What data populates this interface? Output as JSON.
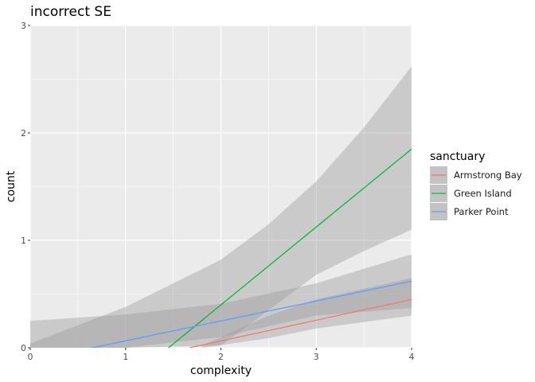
{
  "chart_data": {
    "type": "line",
    "title": "incorrect SE",
    "xlabel": "complexity",
    "ylabel": "count",
    "xlim": [
      0,
      4
    ],
    "ylim": [
      0,
      3
    ],
    "x_ticks": [
      0,
      1,
      2,
      3,
      4
    ],
    "y_ticks": [
      0,
      1,
      2,
      3
    ],
    "x_tick_labels": [
      "0",
      "1",
      "2",
      "3",
      "4"
    ],
    "y_tick_labels": [
      "0",
      "1",
      "2",
      "3"
    ],
    "grid": true,
    "legend": {
      "title": "sanctuary",
      "position": "right"
    },
    "series": [
      {
        "name": "Armstrong Bay",
        "color": "#F8766D",
        "x": [
          1.67,
          4
        ],
        "y": [
          0,
          0.45
        ],
        "ribbon": {
          "x": [
            1.8,
            2.5,
            3,
            3.5,
            4
          ],
          "lower": [
            0,
            0.09,
            0.18,
            0.24,
            0.3
          ],
          "upper": [
            0.02,
            0.3,
            0.45,
            0.55,
            0.65
          ]
        }
      },
      {
        "name": "Green Island",
        "color": "#00BA38",
        "x": [
          1.45,
          4
        ],
        "y": [
          0,
          1.85
        ],
        "ribbon": {
          "x": [
            0,
            1,
            2,
            2.5,
            3,
            3.5,
            4
          ],
          "lower": [
            0,
            0,
            0.02,
            0.35,
            0.68,
            0.9,
            1.1
          ],
          "upper": [
            0.04,
            0.38,
            0.82,
            1.15,
            1.55,
            2.05,
            2.62
          ]
        }
      },
      {
        "name": "Parker Point",
        "color": "#619CFF",
        "x": [
          0.65,
          4
        ],
        "y": [
          0,
          0.62
        ],
        "ribbon": {
          "x": [
            0,
            1,
            2,
            3,
            4
          ],
          "lower": [
            0,
            0,
            0.1,
            0.3,
            0.37
          ],
          "upper": [
            0.25,
            0.31,
            0.41,
            0.6,
            0.87
          ]
        }
      }
    ]
  }
}
